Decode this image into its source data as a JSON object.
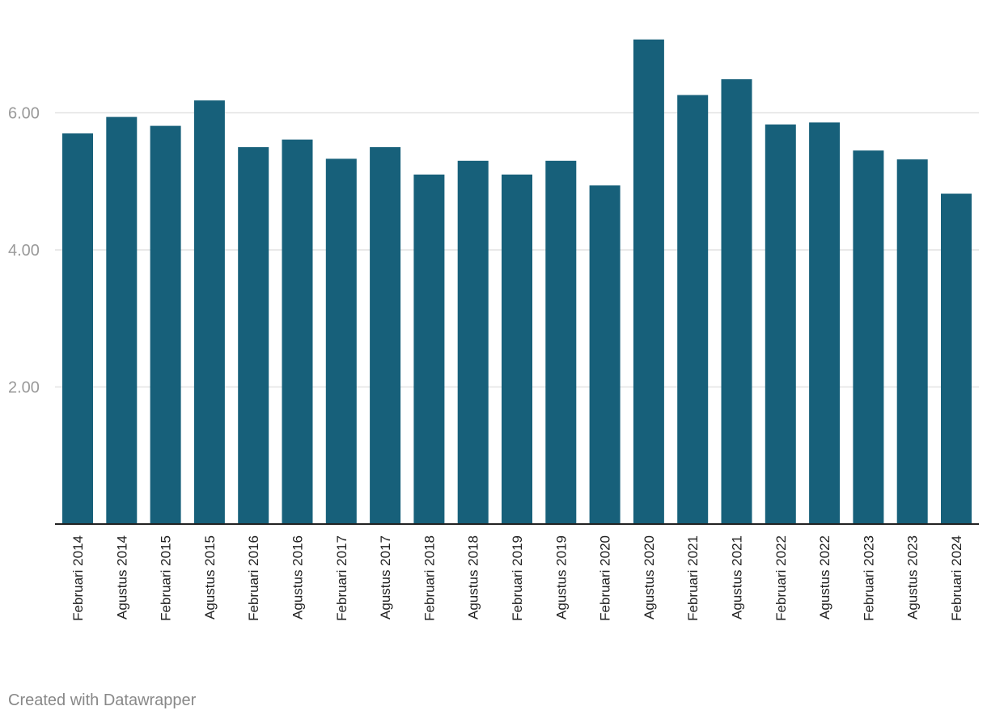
{
  "chart_data": {
    "type": "bar",
    "categories": [
      "Februari 2014",
      "Agustus 2014",
      "Februari 2015",
      "Agustus 2015",
      "Februari 2016",
      "Agustus 2016",
      "Februari 2017",
      "Agustus 2017",
      "Februari 2018",
      "Agustus 2018",
      "Februari 2019",
      "Agustus 2019",
      "Februari 2020",
      "Agustus 2020",
      "Februari 2021",
      "Agustus 2021",
      "Februari 2022",
      "Agustus 2022",
      "Februari 2023",
      "Agustus 2023",
      "Februari 2024"
    ],
    "values": [
      5.7,
      5.94,
      5.81,
      6.18,
      5.5,
      5.61,
      5.33,
      5.5,
      5.1,
      5.3,
      5.1,
      5.3,
      4.94,
      7.07,
      6.26,
      6.49,
      5.83,
      5.86,
      5.45,
      5.32,
      4.82
    ],
    "yticks": [
      "2.00",
      "4.00",
      "6.00"
    ],
    "ylim": [
      0,
      7.63
    ],
    "grid": true,
    "bar_color": "#17607a"
  },
  "footer": {
    "credit": "Created with Datawrapper"
  }
}
